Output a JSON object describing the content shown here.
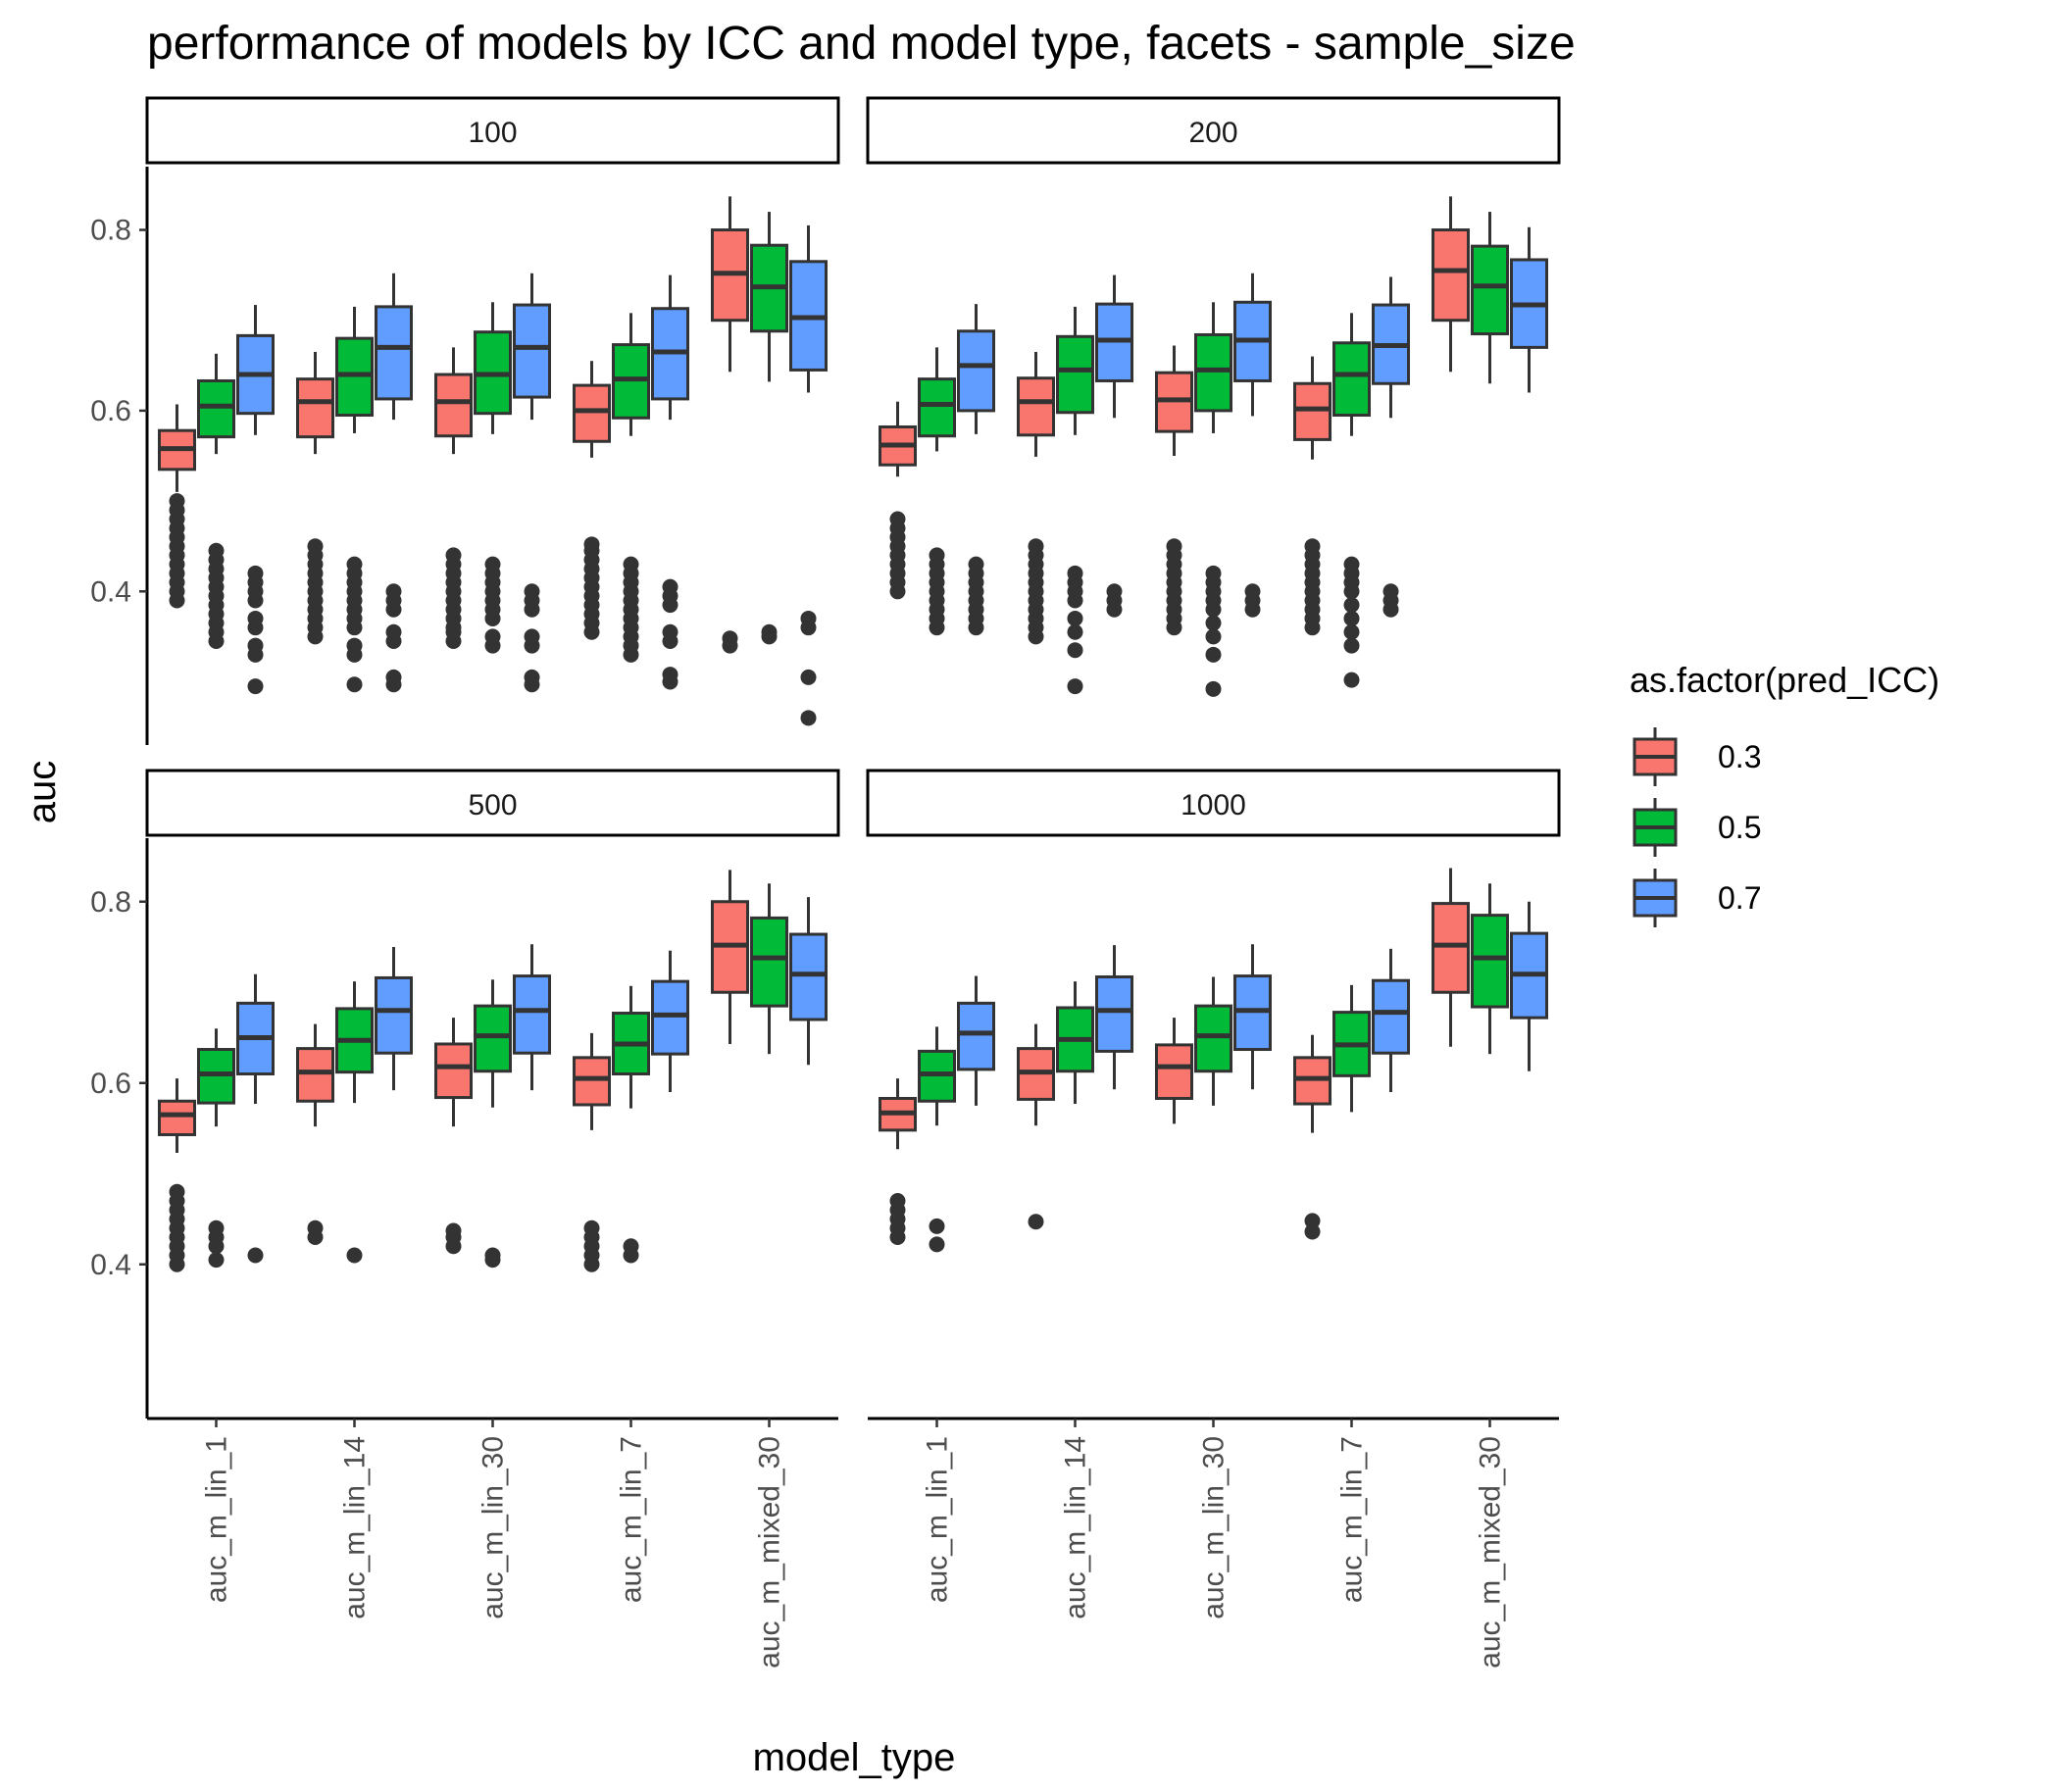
{
  "chart_data": {
    "type": "boxplot",
    "title": "performance of models by ICC and model type, facets - sample_size",
    "xlabel": "model_type",
    "ylabel": "auc",
    "legend_title": "as.factor(pred_ICC)",
    "legend_position": "right",
    "grid": false,
    "ylim": [
      0.23,
      0.87
    ],
    "yticks": [
      "0.4",
      "0.6",
      "0.8"
    ],
    "categories": [
      "auc_m_lin_1",
      "auc_m_lin_14",
      "auc_m_lin_30",
      "auc_m_lin_7",
      "auc_m_mixed_30"
    ],
    "groups": [
      {
        "name": "0.3",
        "color": "#F8766D"
      },
      {
        "name": "0.5",
        "color": "#00BA38"
      },
      {
        "name": "0.7",
        "color": "#619CFF"
      }
    ],
    "facets": [
      {
        "label": "100",
        "boxes": [
          [
            {
              "low": 0.51,
              "q1": 0.535,
              "median": 0.558,
              "q3": 0.578,
              "high": 0.607,
              "outliers": [
                0.39,
                0.4,
                0.41,
                0.42,
                0.43,
                0.44,
                0.45,
                0.46,
                0.47,
                0.48,
                0.49,
                0.5
              ]
            },
            {
              "low": 0.552,
              "q1": 0.571,
              "median": 0.605,
              "q3": 0.633,
              "high": 0.663,
              "outliers": [
                0.345,
                0.355,
                0.365,
                0.375,
                0.385,
                0.395,
                0.405,
                0.415,
                0.425,
                0.435,
                0.445
              ]
            },
            {
              "low": 0.573,
              "q1": 0.597,
              "median": 0.64,
              "q3": 0.683,
              "high": 0.717,
              "outliers": [
                0.295,
                0.33,
                0.34,
                0.36,
                0.37,
                0.39,
                0.4,
                0.41,
                0.42
              ]
            }
          ],
          [
            {
              "low": 0.552,
              "q1": 0.571,
              "median": 0.61,
              "q3": 0.635,
              "high": 0.665,
              "outliers": [
                0.35,
                0.36,
                0.37,
                0.38,
                0.39,
                0.4,
                0.41,
                0.42,
                0.43,
                0.44,
                0.45
              ]
            },
            {
              "low": 0.575,
              "q1": 0.595,
              "median": 0.64,
              "q3": 0.68,
              "high": 0.715,
              "outliers": [
                0.297,
                0.33,
                0.34,
                0.36,
                0.37,
                0.38,
                0.39,
                0.4,
                0.41,
                0.42,
                0.43
              ]
            },
            {
              "low": 0.59,
              "q1": 0.613,
              "median": 0.67,
              "q3": 0.715,
              "high": 0.752,
              "outliers": [
                0.297,
                0.305,
                0.345,
                0.355,
                0.38,
                0.39,
                0.4
              ]
            }
          ],
          [
            {
              "low": 0.552,
              "q1": 0.572,
              "median": 0.61,
              "q3": 0.64,
              "high": 0.67,
              "outliers": [
                0.345,
                0.355,
                0.36,
                0.37,
                0.38,
                0.39,
                0.4,
                0.41,
                0.42,
                0.43,
                0.44
              ]
            },
            {
              "low": 0.574,
              "q1": 0.597,
              "median": 0.64,
              "q3": 0.687,
              "high": 0.72,
              "outliers": [
                0.34,
                0.35,
                0.37,
                0.38,
                0.39,
                0.4,
                0.41,
                0.42,
                0.43
              ]
            },
            {
              "low": 0.59,
              "q1": 0.615,
              "median": 0.67,
              "q3": 0.717,
              "high": 0.752,
              "outliers": [
                0.297,
                0.305,
                0.34,
                0.35,
                0.38,
                0.39,
                0.4
              ]
            }
          ],
          [
            {
              "low": 0.548,
              "q1": 0.566,
              "median": 0.6,
              "q3": 0.628,
              "high": 0.655,
              "outliers": [
                0.355,
                0.365,
                0.375,
                0.385,
                0.395,
                0.405,
                0.415,
                0.425,
                0.435,
                0.445,
                0.452
              ]
            },
            {
              "low": 0.572,
              "q1": 0.592,
              "median": 0.635,
              "q3": 0.673,
              "high": 0.708,
              "outliers": [
                0.33,
                0.34,
                0.35,
                0.36,
                0.37,
                0.38,
                0.39,
                0.4,
                0.41,
                0.42,
                0.43
              ]
            },
            {
              "low": 0.59,
              "q1": 0.613,
              "median": 0.665,
              "q3": 0.713,
              "high": 0.75,
              "outliers": [
                0.3,
                0.308,
                0.345,
                0.355,
                0.385,
                0.395,
                0.405
              ]
            }
          ],
          [
            {
              "low": 0.643,
              "q1": 0.7,
              "median": 0.752,
              "q3": 0.8,
              "high": 0.837,
              "outliers": [
                0.34,
                0.348
              ]
            },
            {
              "low": 0.632,
              "q1": 0.688,
              "median": 0.737,
              "q3": 0.783,
              "high": 0.82,
              "outliers": [
                0.35,
                0.355
              ]
            },
            {
              "low": 0.62,
              "q1": 0.645,
              "median": 0.703,
              "q3": 0.765,
              "high": 0.805,
              "outliers": [
                0.26,
                0.305,
                0.36,
                0.37
              ]
            }
          ]
        ]
      },
      {
        "label": "200",
        "boxes": [
          [
            {
              "low": 0.527,
              "q1": 0.54,
              "median": 0.562,
              "q3": 0.582,
              "high": 0.61,
              "outliers": [
                0.4,
                0.41,
                0.42,
                0.43,
                0.44,
                0.45,
                0.46,
                0.47,
                0.48
              ]
            },
            {
              "low": 0.555,
              "q1": 0.572,
              "median": 0.607,
              "q3": 0.635,
              "high": 0.67,
              "outliers": [
                0.36,
                0.37,
                0.38,
                0.39,
                0.4,
                0.41,
                0.42,
                0.43,
                0.44
              ]
            },
            {
              "low": 0.574,
              "q1": 0.6,
              "median": 0.65,
              "q3": 0.688,
              "high": 0.718,
              "outliers": [
                0.36,
                0.37,
                0.38,
                0.39,
                0.4,
                0.41,
                0.42,
                0.43
              ]
            }
          ],
          [
            {
              "low": 0.549,
              "q1": 0.573,
              "median": 0.61,
              "q3": 0.636,
              "high": 0.665,
              "outliers": [
                0.35,
                0.36,
                0.37,
                0.38,
                0.39,
                0.4,
                0.41,
                0.42,
                0.43,
                0.44,
                0.45
              ]
            },
            {
              "low": 0.573,
              "q1": 0.598,
              "median": 0.645,
              "q3": 0.682,
              "high": 0.715,
              "outliers": [
                0.295,
                0.335,
                0.355,
                0.37,
                0.39,
                0.4,
                0.41,
                0.42
              ]
            },
            {
              "low": 0.592,
              "q1": 0.633,
              "median": 0.678,
              "q3": 0.718,
              "high": 0.75,
              "outliers": [
                0.38,
                0.39,
                0.4
              ]
            }
          ],
          [
            {
              "low": 0.55,
              "q1": 0.577,
              "median": 0.612,
              "q3": 0.642,
              "high": 0.672,
              "outliers": [
                0.36,
                0.37,
                0.38,
                0.39,
                0.4,
                0.41,
                0.42,
                0.43,
                0.44,
                0.45
              ]
            },
            {
              "low": 0.575,
              "q1": 0.6,
              "median": 0.645,
              "q3": 0.684,
              "high": 0.72,
              "outliers": [
                0.292,
                0.33,
                0.35,
                0.365,
                0.38,
                0.39,
                0.4,
                0.41,
                0.42
              ]
            },
            {
              "low": 0.594,
              "q1": 0.633,
              "median": 0.678,
              "q3": 0.72,
              "high": 0.752,
              "outliers": [
                0.38,
                0.39,
                0.4
              ]
            }
          ],
          [
            {
              "low": 0.546,
              "q1": 0.568,
              "median": 0.602,
              "q3": 0.63,
              "high": 0.66,
              "outliers": [
                0.36,
                0.37,
                0.38,
                0.39,
                0.4,
                0.41,
                0.42,
                0.43,
                0.44,
                0.45
              ]
            },
            {
              "low": 0.572,
              "q1": 0.595,
              "median": 0.64,
              "q3": 0.675,
              "high": 0.708,
              "outliers": [
                0.302,
                0.34,
                0.355,
                0.37,
                0.385,
                0.4,
                0.41,
                0.42,
                0.43
              ]
            },
            {
              "low": 0.592,
              "q1": 0.63,
              "median": 0.672,
              "q3": 0.717,
              "high": 0.748,
              "outliers": [
                0.38,
                0.39,
                0.4
              ]
            }
          ],
          [
            {
              "low": 0.643,
              "q1": 0.7,
              "median": 0.755,
              "q3": 0.8,
              "high": 0.837,
              "outliers": []
            },
            {
              "low": 0.63,
              "q1": 0.685,
              "median": 0.738,
              "q3": 0.782,
              "high": 0.82,
              "outliers": []
            },
            {
              "low": 0.62,
              "q1": 0.67,
              "median": 0.717,
              "q3": 0.767,
              "high": 0.803,
              "outliers": []
            }
          ]
        ]
      },
      {
        "label": "500",
        "boxes": [
          [
            {
              "low": 0.523,
              "q1": 0.543,
              "median": 0.565,
              "q3": 0.58,
              "high": 0.605,
              "outliers": [
                0.4,
                0.41,
                0.42,
                0.43,
                0.44,
                0.45,
                0.46,
                0.47,
                0.48
              ]
            },
            {
              "low": 0.552,
              "q1": 0.578,
              "median": 0.61,
              "q3": 0.637,
              "high": 0.66,
              "outliers": [
                0.405,
                0.42,
                0.43,
                0.44
              ]
            },
            {
              "low": 0.577,
              "q1": 0.61,
              "median": 0.65,
              "q3": 0.688,
              "high": 0.72,
              "outliers": [
                0.41
              ]
            }
          ],
          [
            {
              "low": 0.552,
              "q1": 0.58,
              "median": 0.612,
              "q3": 0.638,
              "high": 0.665,
              "outliers": [
                0.43,
                0.44
              ]
            },
            {
              "low": 0.578,
              "q1": 0.612,
              "median": 0.647,
              "q3": 0.682,
              "high": 0.712,
              "outliers": [
                0.41
              ]
            },
            {
              "low": 0.592,
              "q1": 0.633,
              "median": 0.68,
              "q3": 0.716,
              "high": 0.75,
              "outliers": []
            }
          ],
          [
            {
              "low": 0.552,
              "q1": 0.584,
              "median": 0.618,
              "q3": 0.643,
              "high": 0.672,
              "outliers": [
                0.42,
                0.43,
                0.437
              ]
            },
            {
              "low": 0.573,
              "q1": 0.613,
              "median": 0.652,
              "q3": 0.685,
              "high": 0.714,
              "outliers": [
                0.405,
                0.41
              ]
            },
            {
              "low": 0.592,
              "q1": 0.633,
              "median": 0.68,
              "q3": 0.718,
              "high": 0.753,
              "outliers": []
            }
          ],
          [
            {
              "low": 0.548,
              "q1": 0.576,
              "median": 0.605,
              "q3": 0.628,
              "high": 0.655,
              "outliers": [
                0.4,
                0.41,
                0.42,
                0.43,
                0.44
              ]
            },
            {
              "low": 0.572,
              "q1": 0.61,
              "median": 0.643,
              "q3": 0.677,
              "high": 0.707,
              "outliers": [
                0.41,
                0.42
              ]
            },
            {
              "low": 0.59,
              "q1": 0.632,
              "median": 0.675,
              "q3": 0.712,
              "high": 0.746,
              "outliers": []
            }
          ],
          [
            {
              "low": 0.643,
              "q1": 0.7,
              "median": 0.752,
              "q3": 0.8,
              "high": 0.835,
              "outliers": []
            },
            {
              "low": 0.632,
              "q1": 0.685,
              "median": 0.738,
              "q3": 0.782,
              "high": 0.82,
              "outliers": []
            },
            {
              "low": 0.62,
              "q1": 0.67,
              "median": 0.72,
              "q3": 0.764,
              "high": 0.805,
              "outliers": []
            }
          ]
        ]
      },
      {
        "label": "1000",
        "boxes": [
          [
            {
              "low": 0.527,
              "q1": 0.548,
              "median": 0.567,
              "q3": 0.583,
              "high": 0.605,
              "outliers": [
                0.43,
                0.44,
                0.45,
                0.46,
                0.47
              ]
            },
            {
              "low": 0.553,
              "q1": 0.58,
              "median": 0.61,
              "q3": 0.635,
              "high": 0.662,
              "outliers": [
                0.422,
                0.442
              ]
            },
            {
              "low": 0.575,
              "q1": 0.615,
              "median": 0.655,
              "q3": 0.688,
              "high": 0.718,
              "outliers": []
            }
          ],
          [
            {
              "low": 0.553,
              "q1": 0.582,
              "median": 0.612,
              "q3": 0.638,
              "high": 0.665,
              "outliers": [
                0.447
              ]
            },
            {
              "low": 0.577,
              "q1": 0.613,
              "median": 0.648,
              "q3": 0.683,
              "high": 0.712,
              "outliers": []
            },
            {
              "low": 0.593,
              "q1": 0.635,
              "median": 0.68,
              "q3": 0.717,
              "high": 0.752,
              "outliers": []
            }
          ],
          [
            {
              "low": 0.555,
              "q1": 0.583,
              "median": 0.618,
              "q3": 0.642,
              "high": 0.672,
              "outliers": []
            },
            {
              "low": 0.575,
              "q1": 0.613,
              "median": 0.652,
              "q3": 0.685,
              "high": 0.717,
              "outliers": []
            },
            {
              "low": 0.593,
              "q1": 0.637,
              "median": 0.68,
              "q3": 0.718,
              "high": 0.753,
              "outliers": []
            }
          ],
          [
            {
              "low": 0.545,
              "q1": 0.577,
              "median": 0.605,
              "q3": 0.628,
              "high": 0.653,
              "outliers": [
                0.436,
                0.448
              ]
            },
            {
              "low": 0.568,
              "q1": 0.608,
              "median": 0.642,
              "q3": 0.678,
              "high": 0.708,
              "outliers": []
            },
            {
              "low": 0.59,
              "q1": 0.633,
              "median": 0.678,
              "q3": 0.713,
              "high": 0.748,
              "outliers": []
            }
          ],
          [
            {
              "low": 0.64,
              "q1": 0.7,
              "median": 0.752,
              "q3": 0.798,
              "high": 0.837,
              "outliers": []
            },
            {
              "low": 0.632,
              "q1": 0.684,
              "median": 0.738,
              "q3": 0.785,
              "high": 0.82,
              "outliers": []
            },
            {
              "low": 0.613,
              "q1": 0.672,
              "median": 0.72,
              "q3": 0.765,
              "high": 0.8,
              "outliers": []
            }
          ]
        ]
      }
    ]
  }
}
